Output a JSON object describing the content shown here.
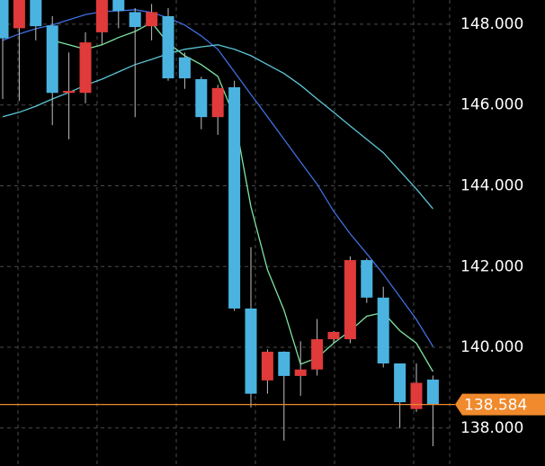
{
  "chart_data": {
    "type": "candlestick",
    "ylim": [
      137.06,
      148.6
    ],
    "yticks": [
      {
        "value": 138,
        "label": "138.000"
      },
      {
        "value": 140,
        "label": "140.000"
      },
      {
        "value": 142,
        "label": "142.000"
      },
      {
        "value": 144,
        "label": "144.000"
      },
      {
        "value": 146,
        "label": "146.000"
      },
      {
        "value": 148,
        "label": "148.000"
      }
    ],
    "grid": true,
    "up_color": "#e03a3a",
    "down_color": "#4bb3e0",
    "open": [
      148.7,
      147.9,
      148.7,
      147.97,
      146.3,
      146.3,
      147.8,
      148.7,
      148.3,
      147.95,
      148.2,
      147.18,
      146.64,
      145.7,
      146.44,
      140.96,
      139.18,
      139.89,
      139.29,
      139.45,
      140.2,
      140.2,
      142.16,
      141.23,
      139.6,
      138.47,
      139.2
    ],
    "high": [
      149.0,
      148.8,
      148.8,
      148.2,
      147.3,
      147.8,
      149.0,
      148.8,
      148.4,
      148.5,
      148.4,
      147.3,
      146.7,
      146.5,
      146.6,
      142.48,
      139.95,
      139.9,
      140.15,
      140.7,
      140.4,
      142.25,
      142.2,
      141.5,
      139.6,
      139.6,
      139.3
    ],
    "low": [
      146.15,
      146.1,
      147.6,
      145.5,
      145.15,
      146.04,
      147.5,
      147.9,
      145.7,
      147.6,
      146.6,
      146.4,
      145.4,
      145.26,
      140.9,
      138.51,
      138.85,
      137.69,
      138.8,
      139.3,
      140.1,
      140.1,
      141.1,
      139.5,
      138.0,
      138.4,
      137.55
    ],
    "close": [
      147.65,
      148.6,
      147.95,
      146.3,
      146.35,
      147.55,
      148.7,
      148.33,
      147.93,
      148.3,
      146.66,
      146.66,
      145.7,
      146.42,
      140.96,
      138.85,
      139.89,
      139.29,
      139.45,
      140.2,
      140.38,
      142.16,
      141.23,
      139.6,
      138.64,
      139.12,
      138.58
    ],
    "series": [
      {
        "color": "#7de3a0",
        "values": [
          null,
          null,
          null,
          147.6,
          147.49,
          147.38,
          147.49,
          147.67,
          147.82,
          148.04,
          147.53,
          147.22,
          147.0,
          146.71,
          145.71,
          143.48,
          141.92,
          140.92,
          139.58,
          139.74,
          140.1,
          140.41,
          140.77,
          140.86,
          140.41,
          140.1,
          139.4
        ]
      },
      {
        "color": "#3f6fe0",
        "values": [
          147.6,
          147.76,
          147.89,
          147.98,
          148.11,
          148.24,
          148.31,
          148.33,
          148.36,
          148.29,
          148.16,
          147.98,
          147.71,
          147.38,
          146.82,
          146.26,
          145.71,
          145.15,
          144.59,
          144.04,
          143.37,
          142.81,
          142.32,
          141.81,
          141.25,
          140.69,
          140.02
        ]
      },
      {
        "color": "#5cc6d6",
        "values": [
          145.71,
          145.82,
          145.97,
          146.15,
          146.31,
          146.49,
          146.64,
          146.82,
          147.0,
          147.13,
          147.27,
          147.38,
          147.44,
          147.49,
          147.38,
          147.22,
          147.0,
          146.78,
          146.49,
          146.15,
          145.82,
          145.48,
          145.15,
          144.82,
          144.37,
          143.92,
          143.43
        ]
      }
    ],
    "current_price": 138.584,
    "current_price_color": "#f08a2c"
  }
}
